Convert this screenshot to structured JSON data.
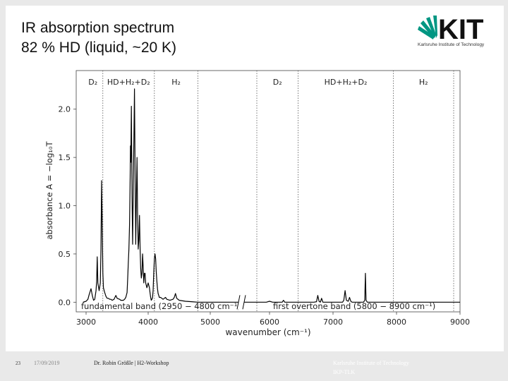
{
  "slide": {
    "title_line1": "IR absorption spectrum",
    "title_line2": "82 % HD (liquid, ~20 K)",
    "logo_text": "KIT",
    "logo_subtext": "Karlsruhe Institute of Technology",
    "brand_color": "#009682"
  },
  "footer": {
    "slide_number": "23",
    "date": "17/09/2019",
    "event": "Dr. Robin Größle | H2-Workshop",
    "institute_line1": "Karlsruhe Institute of Technology",
    "institute_line2": "IKP-TLK"
  },
  "chart_data": {
    "type": "line",
    "xlabel": "wavenumber (cm⁻¹)",
    "ylabel": "absorbance A = −log₁₀T",
    "x_ticks": [
      "3000",
      "4000",
      "5000",
      "6000",
      "7000",
      "8000",
      "9000"
    ],
    "y_ticks": [
      "0.0",
      "0.5",
      "1.0",
      "1.5",
      "2.0"
    ],
    "ylim": [
      -0.1,
      2.4
    ],
    "broken_x_axis": true,
    "segments": [
      {
        "label": "fundamental band (2950 − 4800 cm⁻¹)",
        "xlim": [
          2950,
          5500
        ],
        "regions": [
          {
            "label": "D₂",
            "x_start": 2950,
            "x_end": 3270
          },
          {
            "label": "HD+H₂+D₂",
            "x_start": 3270,
            "x_end": 4100
          },
          {
            "label": "H₂",
            "x_start": 4100,
            "x_end": 4800
          }
        ],
        "series": [
          {
            "x": [
              2950,
              3000,
              3030,
              3050,
              3080,
              3100,
              3120,
              3140,
              3160,
              3170,
              3180,
              3190,
              3210,
              3230,
              3240,
              3250,
              3260,
              3270,
              3280,
              3300,
              3320,
              3340,
              3360,
              3380,
              3400,
              3420,
              3450,
              3480,
              3500,
              3540,
              3560,
              3580,
              3600,
              3620,
              3640,
              3660,
              3670,
              3680,
              3690,
              3700,
              3710,
              3715,
              3720,
              3730,
              3740,
              3750,
              3760,
              3770,
              3780,
              3790,
              3800,
              3810,
              3820,
              3830,
              3840,
              3850,
              3860,
              3870,
              3880,
              3890,
              3900,
              3910,
              3920,
              3930,
              3940,
              3950,
              3960,
              3980,
              4000,
              4020,
              4030,
              4040,
              4050,
              4060,
              4070,
              4080,
              4090,
              4100,
              4110,
              4120,
              4130,
              4140,
              4150,
              4160,
              4170,
              4180,
              4200,
              4220,
              4240,
              4260,
              4280,
              4300,
              4350,
              4400,
              4420,
              4440,
              4460,
              4500,
              4600,
              4700,
              4800,
              4900,
              5000,
              5100,
              5200,
              5300,
              5400,
              5500
            ],
            "y": [
              0.0,
              0.01,
              0.03,
              0.08,
              0.14,
              0.07,
              0.02,
              0.03,
              0.12,
              0.22,
              0.47,
              0.2,
              0.12,
              0.2,
              0.55,
              1.26,
              0.8,
              0.3,
              0.15,
              0.1,
              0.06,
              0.04,
              0.04,
              0.03,
              0.03,
              0.02,
              0.03,
              0.07,
              0.04,
              0.03,
              0.02,
              0.02,
              0.02,
              0.03,
              0.05,
              0.1,
              0.25,
              0.4,
              0.55,
              0.8,
              1.3,
              1.62,
              1.45,
              2.03,
              1.1,
              0.6,
              1.2,
              1.7,
              2.21,
              1.3,
              0.6,
              1.1,
              1.5,
              0.9,
              0.55,
              0.65,
              0.9,
              0.55,
              0.35,
              0.25,
              0.3,
              0.5,
              0.35,
              0.2,
              0.3,
              0.3,
              0.2,
              0.15,
              0.2,
              0.15,
              0.1,
              0.05,
              0.02,
              0.03,
              0.05,
              0.12,
              0.3,
              0.45,
              0.5,
              0.45,
              0.32,
              0.22,
              0.14,
              0.09,
              0.07,
              0.05,
              0.05,
              0.04,
              0.03,
              0.04,
              0.05,
              0.03,
              0.02,
              0.03,
              0.05,
              0.09,
              0.04,
              0.02,
              0.01,
              0.005,
              0.0,
              0.0,
              0.0,
              0.0,
              0.0,
              0.0,
              0.0,
              0.0
            ]
          }
        ]
      },
      {
        "label": "first overtone band (5800 − 8900 cm⁻¹)",
        "xlim": [
          5500,
          9000
        ],
        "regions": [
          {
            "label": "D₂",
            "x_start": 5800,
            "x_end": 6450
          },
          {
            "label": "HD+H₂+D₂",
            "x_start": 6450,
            "x_end": 7950
          },
          {
            "label": "H₂",
            "x_start": 7950,
            "x_end": 8900
          }
        ],
        "series": [
          {
            "x": [
              5500,
              5800,
              5950,
              6000,
              6050,
              6200,
              6220,
              6240,
              6400,
              6600,
              6700,
              6740,
              6760,
              6780,
              6800,
              6820,
              6840,
              6860,
              6900,
              7100,
              7150,
              7170,
              7190,
              7210,
              7240,
              7260,
              7280,
              7300,
              7400,
              7480,
              7500,
              7510,
              7520,
              7540,
              7600,
              8000,
              8500,
              9000
            ],
            "y": [
              0.0,
              0.0,
              0.0,
              0.01,
              0.0,
              0.0,
              0.02,
              0.0,
              0.0,
              0.0,
              0.0,
              0.005,
              0.07,
              0.01,
              0.0,
              0.04,
              0.0,
              0.0,
              0.0,
              0.0,
              0.0,
              0.02,
              0.12,
              0.02,
              0.01,
              0.05,
              0.01,
              0.0,
              0.0,
              0.0,
              0.02,
              0.3,
              0.02,
              0.0,
              0.0,
              0.0,
              0.0,
              0.0
            ]
          }
        ]
      }
    ]
  }
}
